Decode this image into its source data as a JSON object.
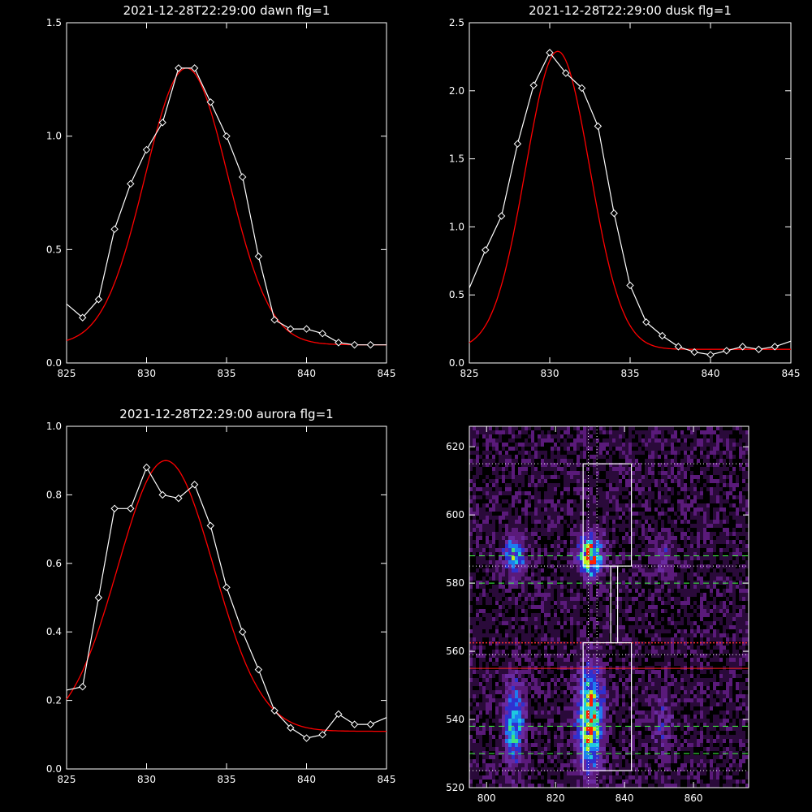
{
  "chart_data": [
    {
      "type": "line",
      "title": "2021-12-28T22:29:00 dawn flg=1",
      "xlim": [
        825,
        845
      ],
      "ylim": [
        0.0,
        1.5
      ],
      "xticks": [
        "825",
        "830",
        "835",
        "840",
        "845"
      ],
      "yticks": [
        "0.0",
        "0.5",
        "1.0",
        "1.5"
      ],
      "series": [
        {
          "kind": "observed",
          "color": "#ffffff",
          "marker": "diamond",
          "x": [
            825,
            826,
            827,
            828,
            829,
            830,
            831,
            832,
            833,
            834,
            835,
            836,
            837,
            838,
            839,
            840,
            841,
            842,
            843,
            844,
            845
          ],
          "y": [
            0.26,
            0.2,
            0.28,
            0.59,
            0.79,
            0.94,
            1.06,
            1.3,
            1.3,
            1.15,
            1.0,
            0.82,
            0.47,
            0.19,
            0.15,
            0.15,
            0.13,
            0.09,
            0.08,
            0.08,
            0.08
          ]
        },
        {
          "kind": "fit",
          "color": "#ff0000",
          "gauss": {
            "a": 1.22,
            "mu": 832.5,
            "sigma": 2.6,
            "c": 0.08
          }
        }
      ]
    },
    {
      "type": "line",
      "title": "2021-12-28T22:29:00 dusk flg=1",
      "xlim": [
        825,
        845
      ],
      "ylim": [
        0.0,
        2.5
      ],
      "xticks": [
        "825",
        "830",
        "835",
        "840",
        "845"
      ],
      "yticks": [
        "0.0",
        "0.5",
        "1.0",
        "1.5",
        "2.0",
        "2.5"
      ],
      "series": [
        {
          "kind": "observed",
          "color": "#ffffff",
          "marker": "diamond",
          "x": [
            825,
            826,
            827,
            828,
            829,
            830,
            831,
            832,
            833,
            834,
            835,
            836,
            837,
            838,
            839,
            840,
            841,
            842,
            843,
            844,
            845
          ],
          "y": [
            0.55,
            0.83,
            1.08,
            1.61,
            2.04,
            2.28,
            2.13,
            2.02,
            1.74,
            1.1,
            0.57,
            0.3,
            0.2,
            0.12,
            0.08,
            0.06,
            0.09,
            0.12,
            0.1,
            0.12,
            0.16
          ]
        },
        {
          "kind": "fit",
          "color": "#ff0000",
          "gauss": {
            "a": 2.19,
            "mu": 830.5,
            "sigma": 2.0,
            "c": 0.1
          }
        }
      ]
    },
    {
      "type": "line",
      "title": "2021-12-28T22:29:00 aurora flg=1",
      "xlim": [
        825,
        845
      ],
      "ylim": [
        0.0,
        1.0
      ],
      "xticks": [
        "825",
        "830",
        "835",
        "840",
        "845"
      ],
      "yticks": [
        "0.0",
        "0.2",
        "0.4",
        "0.6",
        "0.8",
        "1.0"
      ],
      "series": [
        {
          "kind": "observed",
          "color": "#ffffff",
          "marker": "diamond",
          "x": [
            825,
            826,
            827,
            828,
            829,
            830,
            831,
            832,
            833,
            834,
            835,
            836,
            837,
            838,
            839,
            840,
            841,
            842,
            843,
            844,
            845
          ],
          "y": [
            0.23,
            0.24,
            0.5,
            0.76,
            0.76,
            0.88,
            0.8,
            0.79,
            0.83,
            0.71,
            0.53,
            0.4,
            0.29,
            0.17,
            0.12,
            0.09,
            0.1,
            0.16,
            0.13,
            0.13,
            0.15
          ]
        },
        {
          "kind": "fit",
          "color": "#ff0000",
          "gauss": {
            "a": 0.79,
            "mu": 831.2,
            "sigma": 3.0,
            "c": 0.11
          }
        }
      ]
    },
    {
      "type": "heatmap",
      "title": "",
      "xlim": [
        795,
        876
      ],
      "ylim": [
        520,
        626
      ],
      "xticks": [
        "800",
        "820",
        "840",
        "860"
      ],
      "yticks": [
        "520",
        "540",
        "560",
        "580",
        "600",
        "620"
      ],
      "colormap": [
        "#000000",
        "#2a0a3a",
        "#5a1a7a",
        "#6a2aa0",
        "#3030d0",
        "#1e7cf0",
        "#1ec8e0",
        "#40e080",
        "#c0f020",
        "#ff2000"
      ],
      "sources": [
        {
          "x": 808,
          "y": 588,
          "sx": 2.2,
          "sy": 4,
          "amp": 5
        },
        {
          "x": 808,
          "y": 539,
          "sx": 2.0,
          "sy": 8,
          "amp": 6
        },
        {
          "x": 830,
          "y": 588,
          "sx": 2.5,
          "sy": 4,
          "amp": 8
        },
        {
          "x": 830,
          "y": 540,
          "sx": 2.5,
          "sy": 10,
          "amp": 8
        },
        {
          "x": 851,
          "y": 588,
          "sx": 2.0,
          "sy": 4,
          "amp": 2
        },
        {
          "x": 851,
          "y": 538,
          "sx": 2.0,
          "sy": 6,
          "amp": 2
        }
      ],
      "boxes": [
        {
          "x0": 828,
          "x1": 842,
          "y0": 585,
          "y1": 615
        },
        {
          "x0": 828,
          "x1": 842,
          "y0": 525,
          "y1": 562.5
        },
        {
          "x0": 836,
          "x1": 838,
          "y0": 562.5,
          "y1": 585
        }
      ],
      "vlines_dotted": [
        829.5,
        832
      ],
      "hlines_dotted_white": [
        615,
        585,
        559,
        525
      ],
      "hlines_dotted_red": [
        562.5
      ],
      "hlines_green_dashed": [
        588,
        580,
        538,
        530
      ],
      "hlines_red_solid": [
        555
      ]
    }
  ]
}
